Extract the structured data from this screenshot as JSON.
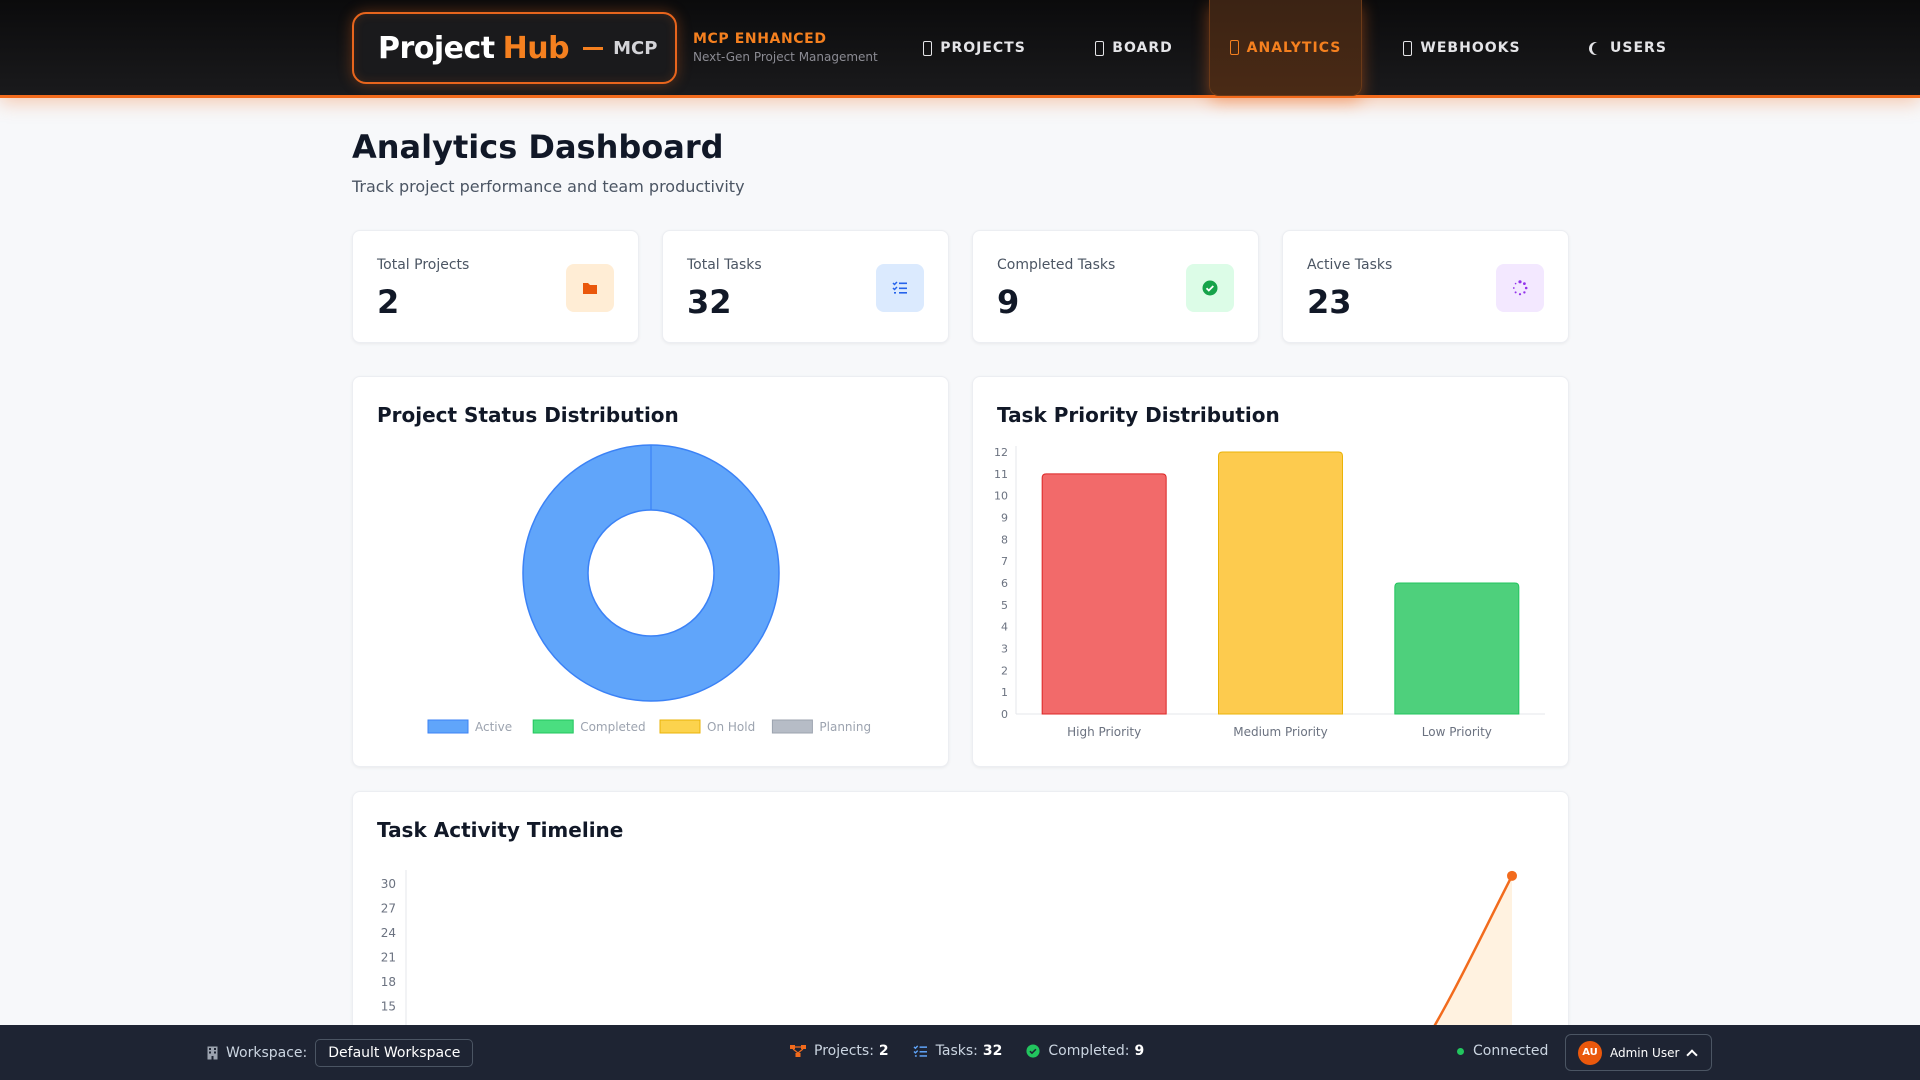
{
  "header": {
    "logo_project": "Project",
    "logo_hub": "Hub",
    "logo_mcp": "MCP",
    "tagline_main": "MCP ENHANCED",
    "tagline_sub": "Next-Gen Project Management",
    "accent_color": "#f5801f",
    "nav": [
      {
        "label": "PROJECTS",
        "icon": "folder-icon",
        "active": false
      },
      {
        "label": "BOARD",
        "icon": "board-icon",
        "active": false
      },
      {
        "label": "ANALYTICS",
        "icon": "chart-icon",
        "active": true
      },
      {
        "label": "WEBHOOKS",
        "icon": "webhook-icon",
        "active": false
      },
      {
        "label": "USERS",
        "icon": "moon-icon",
        "active": false
      }
    ]
  },
  "page": {
    "title": "Analytics Dashboard",
    "subtitle": "Track project performance and team productivity"
  },
  "stats": [
    {
      "label": "Total Projects",
      "value": "2",
      "icon": "folder-icon",
      "color": "#ea580c",
      "bg": "#ffedd5"
    },
    {
      "label": "Total Tasks",
      "value": "32",
      "icon": "task-list-icon",
      "color": "#2563eb",
      "bg": "#dbeafe"
    },
    {
      "label": "Completed Tasks",
      "value": "9",
      "icon": "check-circle-icon",
      "color": "#16a34a",
      "bg": "#dcfce7"
    },
    {
      "label": "Active Tasks",
      "value": "23",
      "icon": "spinner-icon",
      "color": "#9333ea",
      "bg": "#f3e8ff"
    }
  ],
  "project_status": {
    "title": "Project Status Distribution",
    "legend": [
      "Active",
      "Completed",
      "On Hold",
      "Planning"
    ]
  },
  "task_priority": {
    "title": "Task Priority Distribution"
  },
  "timeline": {
    "title": "Task Activity Timeline"
  },
  "chart_data": [
    {
      "type": "pie",
      "title": "Project Status Distribution",
      "categories": [
        "Active",
        "Completed",
        "On Hold",
        "Planning"
      ],
      "values": [
        2,
        0,
        0,
        0
      ],
      "colors": [
        "#60a5fa",
        "#4ade80",
        "#fcd34d",
        "#b6bcc6"
      ],
      "legend": "bottom"
    },
    {
      "type": "bar",
      "title": "Task Priority Distribution",
      "categories": [
        "High Priority",
        "Medium Priority",
        "Low Priority"
      ],
      "values": [
        11,
        12,
        6
      ],
      "colors": [
        "#f26a6a",
        "#fdcb4e",
        "#4ed07c"
      ],
      "ylim": [
        0,
        12
      ],
      "yticks": [
        0,
        1,
        2,
        3,
        4,
        5,
        6,
        7,
        8,
        9,
        10,
        11,
        12
      ]
    },
    {
      "type": "area",
      "title": "Task Activity Timeline",
      "yticks_visible": [
        15,
        18,
        21,
        24,
        27,
        30
      ],
      "last_value": 31,
      "color": "#f26b1d"
    }
  ],
  "footer": {
    "workspace_label": "Workspace:",
    "workspace_value": "Default Workspace",
    "projects_label": "Projects:",
    "projects_value": "2",
    "tasks_label": "Tasks:",
    "tasks_value": "32",
    "completed_label": "Completed:",
    "completed_value": "9",
    "connection": "Connected",
    "avatar_initials": "AU",
    "user_name": "Admin User"
  }
}
